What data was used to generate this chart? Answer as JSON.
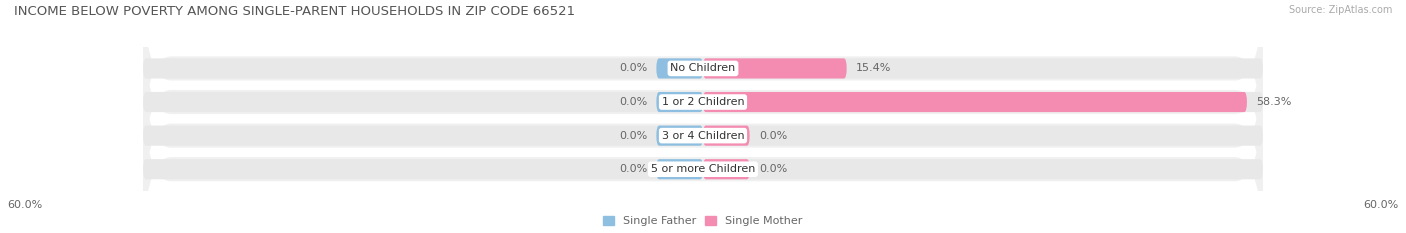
{
  "title": "INCOME BELOW POVERTY AMONG SINGLE-PARENT HOUSEHOLDS IN ZIP CODE 66521",
  "source": "Source: ZipAtlas.com",
  "categories": [
    "No Children",
    "1 or 2 Children",
    "3 or 4 Children",
    "5 or more Children"
  ],
  "single_father": [
    0.0,
    0.0,
    0.0,
    0.0
  ],
  "single_mother": [
    15.4,
    58.3,
    0.0,
    0.0
  ],
  "axis_max": 60.0,
  "father_color": "#8fbfe0",
  "mother_color": "#f48cb1",
  "bar_bg_color": "#e8e8e8",
  "row_bg_color": "#f0f0f0",
  "title_color": "#555555",
  "label_color": "#666666",
  "source_color": "#aaaaaa",
  "title_fontsize": 9.5,
  "label_fontsize": 8.0,
  "cat_fontsize": 8.0,
  "bar_height": 0.6,
  "min_stub": 5.0,
  "figsize": [
    14.06,
    2.33
  ],
  "dpi": 100
}
